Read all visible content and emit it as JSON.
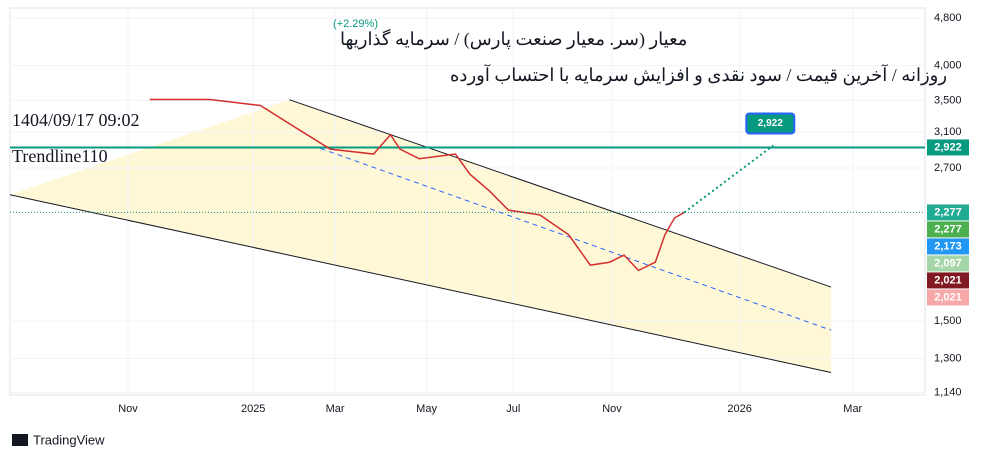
{
  "header": {
    "title": "معیار  (سر. معیار صنعت پارس) / سرمایه گذاریها",
    "subtitle": "روزانه / آخرین قیمت / سود نقدی و افزایش سرمایه با احتساب آورده",
    "timestamp": "1404/09/17 09:02",
    "drawing_name": "Trendline110",
    "change": "(+2.29%)"
  },
  "footer": {
    "brand": "TradingView"
  },
  "chart_data": {
    "type": "line",
    "log_scale": true,
    "xlim": [
      0,
      380
    ],
    "ylim": [
      1130,
      4990
    ],
    "xticks": [
      {
        "value": 49,
        "label": "Nov"
      },
      {
        "value": 101,
        "label": "2025"
      },
      {
        "value": 135,
        "label": "Mar"
      },
      {
        "value": 173,
        "label": "May"
      },
      {
        "value": 209,
        "label": "Jul"
      },
      {
        "value": 250,
        "label": "Nov"
      },
      {
        "value": 303,
        "label": "2026"
      },
      {
        "value": 350,
        "label": "Mar"
      }
    ],
    "yticks": [
      {
        "value": 4800,
        "label": "4,800"
      },
      {
        "value": 4000,
        "label": "4,000"
      },
      {
        "value": 3500,
        "label": "3,500"
      },
      {
        "value": 3100,
        "label": "3,100"
      },
      {
        "value": 2700,
        "label": "2,700"
      },
      {
        "value": 1500,
        "label": "1,500"
      },
      {
        "value": 1300,
        "label": "1,300"
      },
      {
        "value": 1140,
        "label": "1,140"
      }
    ],
    "series": [
      {
        "color": "#d32f2f",
        "x": [
          58,
          83,
          104,
          120,
          133,
          151,
          158,
          162,
          170,
          185,
          191,
          199,
          207,
          220,
          232,
          241,
          249,
          255,
          261,
          268,
          272,
          276,
          280
        ],
        "values": [
          3513,
          3513,
          3432,
          3128,
          2903,
          2849,
          3068,
          2903,
          2798,
          2849,
          2637,
          2475,
          2297,
          2256,
          2091,
          1860,
          1881,
          1933,
          1823,
          1881,
          2091,
          2230,
          2277
        ]
      }
    ],
    "channel": {
      "color": "#131722",
      "fill": "#fff8d6",
      "upper": {
        "x": [
          116,
          341
        ],
        "values": [
          3510,
          1710
        ]
      },
      "middle": {
        "x": [
          129,
          341
        ],
        "values": [
          2910,
          1449
        ],
        "color": "#2962ff"
      },
      "lower": {
        "x": [
          0,
          341
        ],
        "values": [
          2437,
          1232
        ]
      }
    },
    "trendline": {
      "value": 2922,
      "color": "#089981"
    },
    "target": {
      "x": 317,
      "value": 2922,
      "label": "2,922",
      "color": "#089981"
    },
    "price_labels": [
      {
        "value": 2922,
        "label": "2,922",
        "color": "#089981"
      },
      {
        "value": 2277,
        "label": "2,277",
        "color": "#22ab94"
      },
      {
        "value": 2277,
        "label": "2,277",
        "color": "#4caf50"
      },
      {
        "value": 2173,
        "label": "2,173",
        "color": "#2196f3"
      },
      {
        "value": 2097,
        "label": "2,097",
        "color": "#a5d6a7"
      },
      {
        "value": 2021,
        "label": "2,021",
        "color": "#801922"
      },
      {
        "value": 2021,
        "label": "2,021",
        "color": "#f7a9a9"
      }
    ]
  }
}
